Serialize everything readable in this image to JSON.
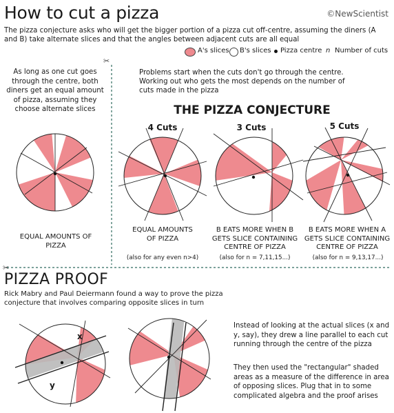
{
  "header": {
    "title": "How to cut a pizza",
    "brand": "NewScientist",
    "brand_mark": "©",
    "intro": "The pizza conjecture asks who will get the bigger portion of a pizza cut off-centre, assuming the diners (A and B) take alternate slices and that the angles between adjacent cuts are all equal"
  },
  "legend": {
    "a_slices": "A's slices",
    "b_slices": "B's slices",
    "centre": "Pizza centre",
    "n_symbol": "n",
    "cuts": "Number of cuts"
  },
  "colors": {
    "a_slice": "#ee8a8f",
    "b_slice": "#ffffff",
    "shade": "#b9b9b9",
    "divider": "#2f6b5f"
  },
  "left_panel": {
    "text": "As long as one cut goes through the centre, both diners get an equal amount of pizza, assuming they choose alternate slices",
    "caption": "EQUAL AMOUNTS OF PIZZA"
  },
  "middle_text": "Problems start when the cuts don't go through the centre. Working out who gets the most depends on the number of cuts made in the pizza",
  "conjecture_title": "THE PIZZA CONJECTURE",
  "pizzas": [
    {
      "cuts_label": "4 Cuts",
      "caption": "EQUAL AMOUNTS OF PIZZA",
      "note": "(also for any even n>4)"
    },
    {
      "cuts_label": "3 Cuts",
      "caption": "B EATS MORE WHEN B GETS SLICE CONTAINING CENTRE OF PIZZA",
      "note": "(also for n = 7,11,15...)"
    },
    {
      "cuts_label": "5 Cuts",
      "caption": "B EATS MORE WHEN A GETS SLICE CONTAINING CENTRE OF PIZZA",
      "note": "(also for n = 9,13,17...)"
    }
  ],
  "proof": {
    "title": "PIZZA PROOF",
    "intro": "Rick Mabry and Paul Deiermann found a way to prove the pizza conjecture that involves comparing opposite slices in turn",
    "label_x": "x",
    "label_y": "y",
    "desc1": "Instead of looking at the actual slices (x and y, say), they drew a line parallel to each cut running through the centre of the pizza",
    "desc2": "They then used the \"rectangular\" shaded areas as a measure of the difference in area of opposing slices. Plug that in to some complicated algebra and the proof arises"
  }
}
